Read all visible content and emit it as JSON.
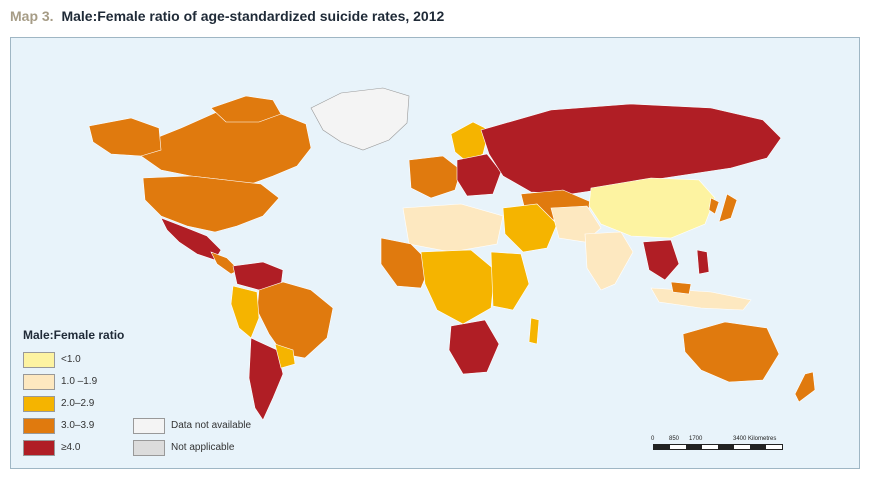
{
  "title": {
    "map_number": "Map 3.",
    "text": "Male:Female ratio of age-standardized suicide rates, 2012"
  },
  "colors": {
    "ocean": "#e8f3fa",
    "lt1": "#fdf3a1",
    "r1_1_9": "#fde8c0",
    "r2_2_9": "#f5b400",
    "r3_3_9": "#e07a0e",
    "ge4": "#b01e25",
    "no_data": "#f4f4f4",
    "not_applicable": "#dcdcdc"
  },
  "legend": {
    "title": "Male:Female ratio",
    "items": [
      {
        "label": "<1.0",
        "color": "#fdf3a1"
      },
      {
        "label": "1.0 –1.9",
        "color": "#fde8c0"
      },
      {
        "label": "2.0–2.9",
        "color": "#f5b400"
      },
      {
        "label": "3.0–3.9",
        "color": "#e07a0e"
      },
      {
        "label": "≥4.0",
        "color": "#b01e25"
      }
    ],
    "extra": [
      {
        "label": "Data not available",
        "color": "#f4f4f4"
      },
      {
        "label": "Not applicable",
        "color": "#dcdcdc"
      }
    ]
  },
  "scale": {
    "ticks": [
      "0",
      "850",
      "1700",
      "3400 Kilometres"
    ]
  }
}
